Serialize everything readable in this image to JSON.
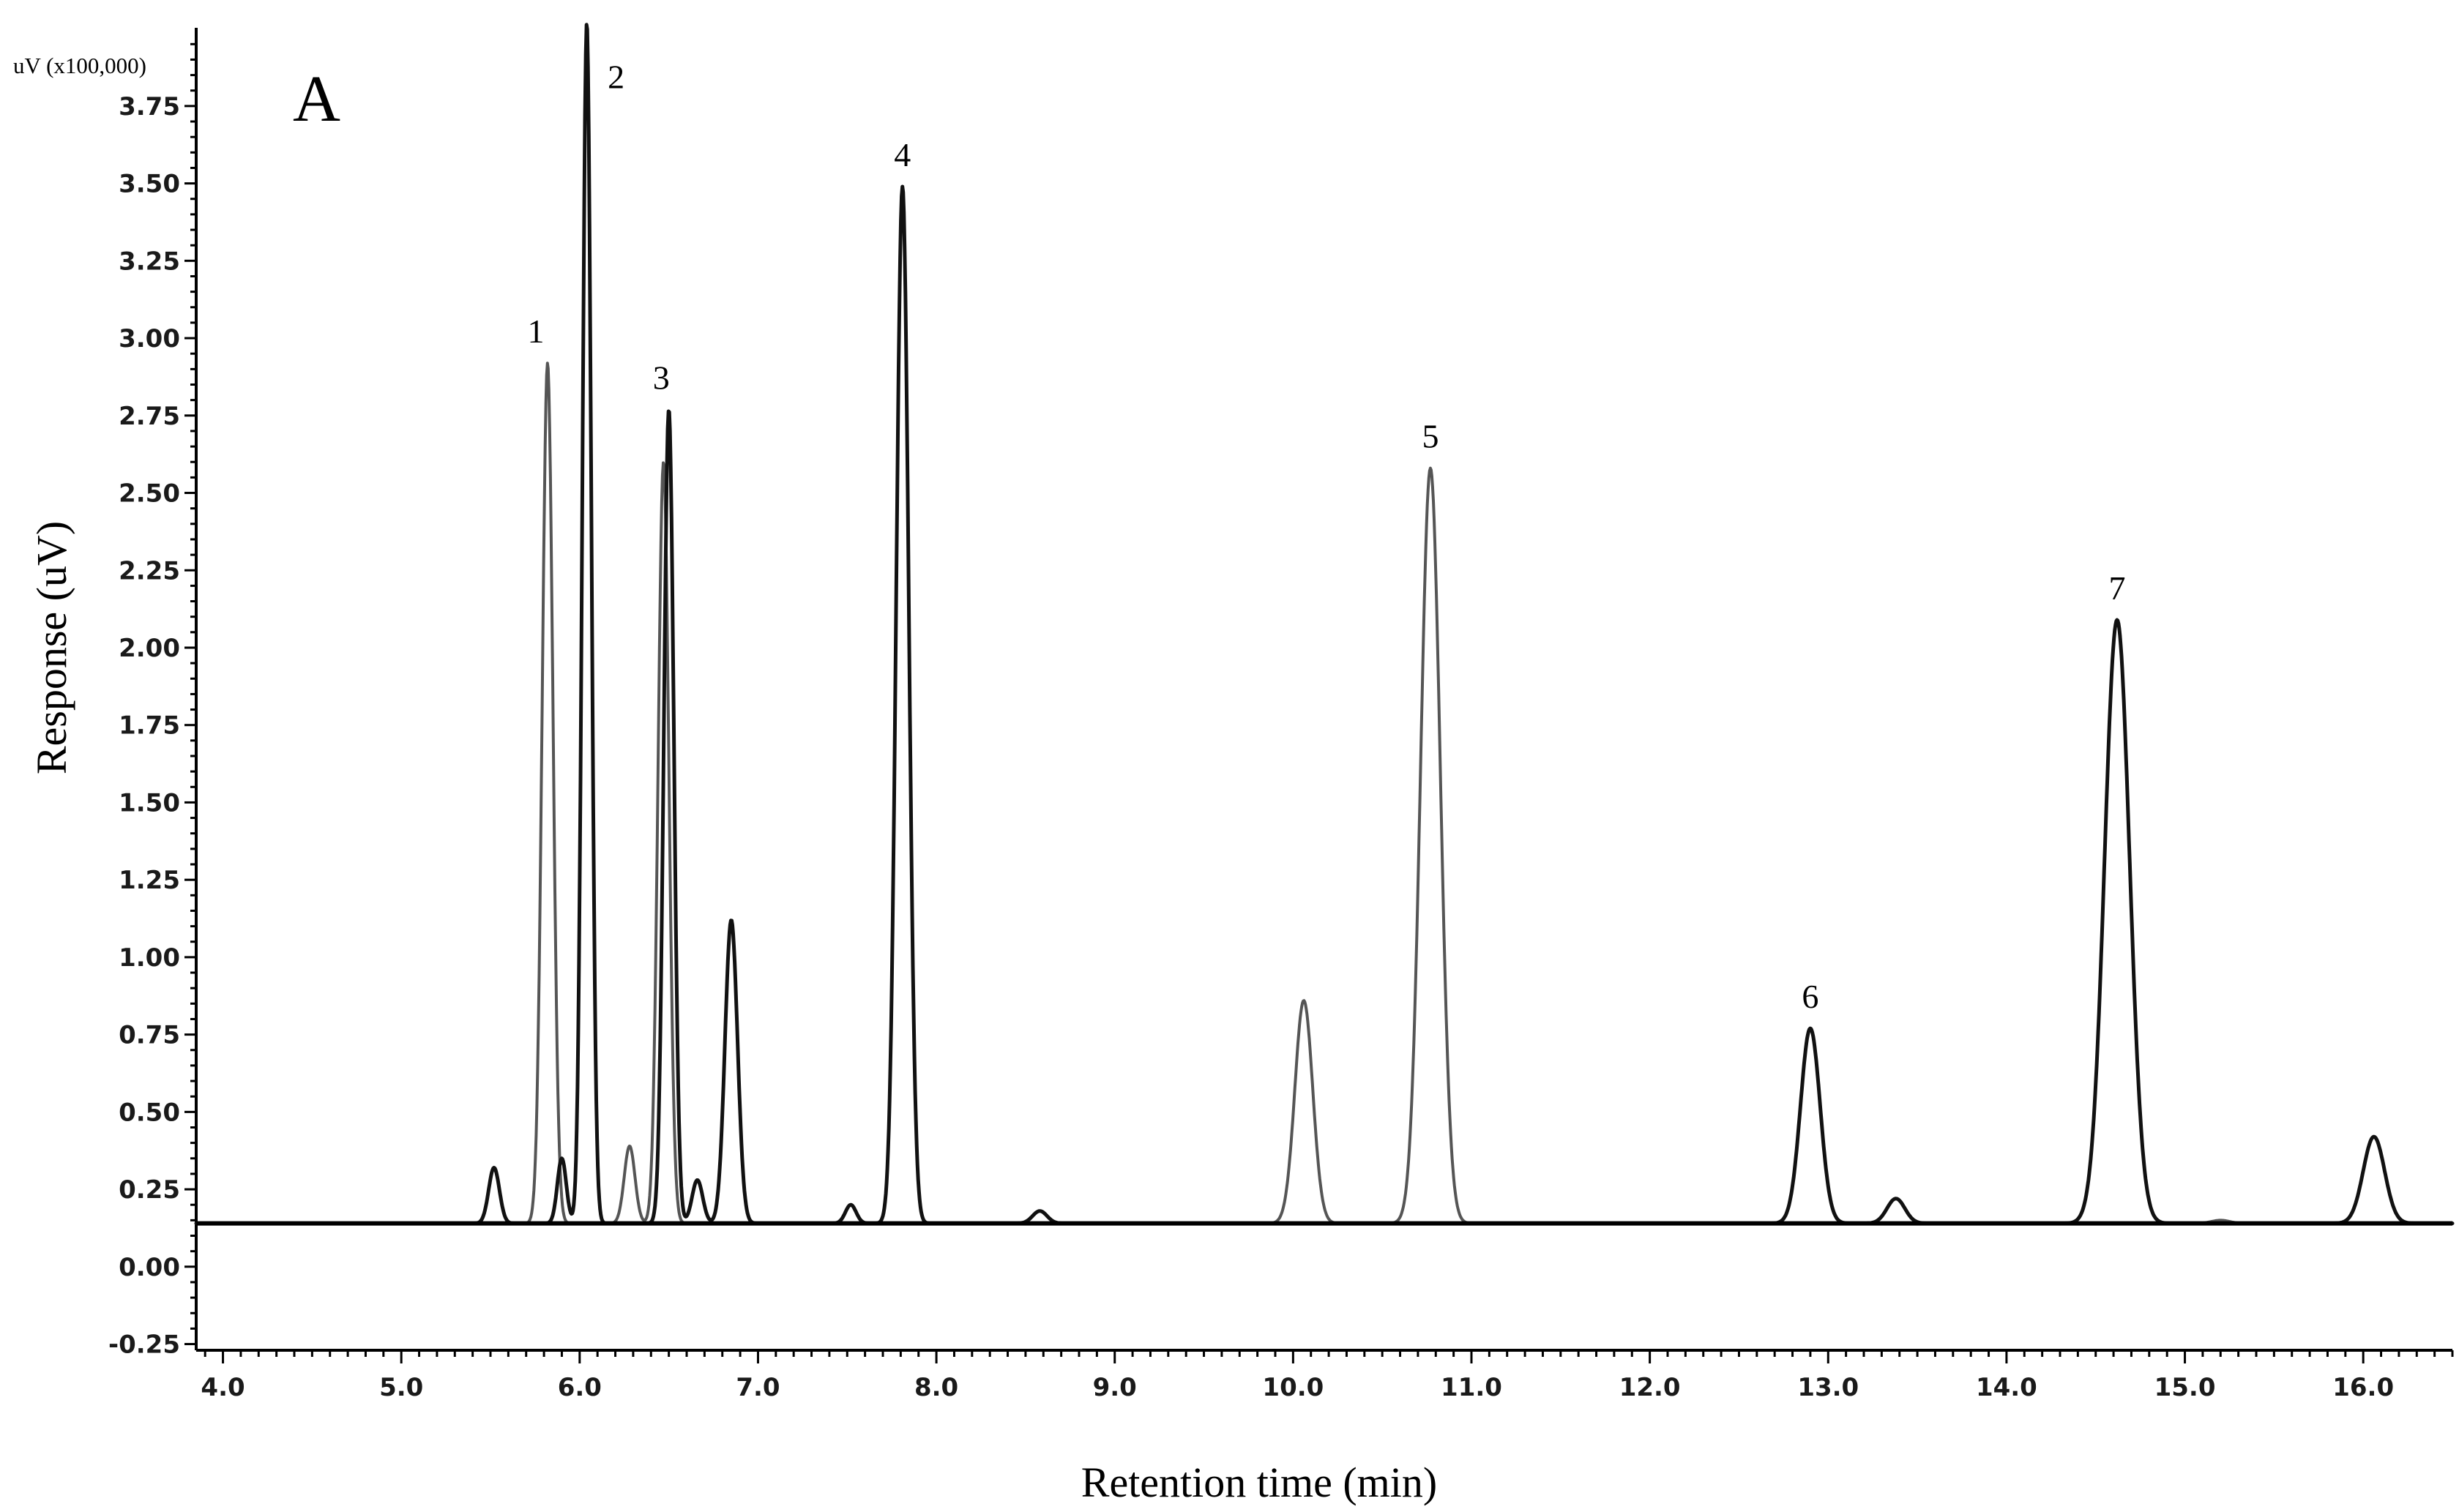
{
  "chart_data": {
    "type": "line",
    "panel_label": "A",
    "title": "",
    "xlabel": "Retention time (min)",
    "ylabel": "Response (uV)",
    "y_unit_label": "uV (x100,000)",
    "xlim": [
      3.85,
      16.5
    ],
    "ylim": [
      -0.27,
      4.05
    ],
    "x_ticks": [
      4.0,
      5.0,
      6.0,
      7.0,
      8.0,
      9.0,
      10.0,
      11.0,
      12.0,
      13.0,
      14.0,
      15.0,
      16.0
    ],
    "x_tick_labels": [
      "4.0",
      "5.0",
      "6.0",
      "7.0",
      "8.0",
      "9.0",
      "10.0",
      "11.0",
      "12.0",
      "13.0",
      "14.0",
      "15.0",
      "16.0"
    ],
    "y_ticks": [
      -0.25,
      0.0,
      0.25,
      0.5,
      0.75,
      1.0,
      1.25,
      1.5,
      1.75,
      2.0,
      2.25,
      2.5,
      2.75,
      3.0,
      3.25,
      3.5,
      3.75
    ],
    "y_tick_labels": [
      "-0.25",
      "0.00",
      "0.25",
      "0.50",
      "0.75",
      "1.00",
      "1.25",
      "1.50",
      "1.75",
      "2.00",
      "2.25",
      "2.50",
      "2.75",
      "3.00",
      "3.25",
      "3.50",
      "3.75"
    ],
    "baseline": 0.14,
    "grid": false,
    "peak_annotations": [
      {
        "label": "1",
        "x": 5.82,
        "y": 2.92
      },
      {
        "label": "2",
        "x": 6.04,
        "y": 4.02
      },
      {
        "label": "3",
        "x": 6.49,
        "y": 2.77
      },
      {
        "label": "4",
        "x": 7.81,
        "y": 3.49
      },
      {
        "label": "5",
        "x": 10.77,
        "y": 2.58
      },
      {
        "label": "6",
        "x": 12.9,
        "y": 0.77
      },
      {
        "label": "7",
        "x": 14.62,
        "y": 2.09
      }
    ],
    "series": [
      {
        "color": "#555555",
        "peaks": [
          {
            "x": 5.82,
            "height": 2.92,
            "width": 0.03
          },
          {
            "x": 6.28,
            "height": 0.39,
            "width": 0.03
          },
          {
            "x": 6.47,
            "height": 2.6,
            "width": 0.03
          },
          {
            "x": 10.06,
            "height": 0.86,
            "width": 0.05
          },
          {
            "x": 10.77,
            "height": 2.58,
            "width": 0.055
          },
          {
            "x": 15.2,
            "height": 0.15,
            "width": 0.05
          }
        ]
      },
      {
        "color": "#111111",
        "peaks": [
          {
            "x": 5.52,
            "height": 0.32,
            "width": 0.03
          },
          {
            "x": 5.9,
            "height": 0.35,
            "width": 0.025
          },
          {
            "x": 6.04,
            "height": 4.02,
            "width": 0.025
          },
          {
            "x": 6.5,
            "height": 2.77,
            "width": 0.028
          },
          {
            "x": 6.66,
            "height": 0.28,
            "width": 0.03
          },
          {
            "x": 6.85,
            "height": 1.12,
            "width": 0.035
          },
          {
            "x": 7.52,
            "height": 0.2,
            "width": 0.03
          },
          {
            "x": 7.81,
            "height": 3.49,
            "width": 0.035
          },
          {
            "x": 8.58,
            "height": 0.18,
            "width": 0.04
          },
          {
            "x": 12.9,
            "height": 0.77,
            "width": 0.055
          },
          {
            "x": 13.38,
            "height": 0.22,
            "width": 0.05
          },
          {
            "x": 14.62,
            "height": 2.09,
            "width": 0.07
          },
          {
            "x": 16.06,
            "height": 0.42,
            "width": 0.06
          }
        ]
      }
    ]
  }
}
